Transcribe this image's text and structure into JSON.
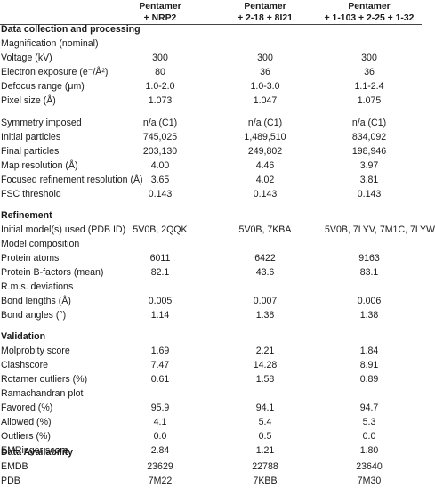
{
  "columns": [
    {
      "line1": "Pentamer",
      "line2": "+ NRP2"
    },
    {
      "line1": "Pentamer",
      "line2": "+ 2-18 + 8I21"
    },
    {
      "line1": "Pentamer",
      "line2": "+ 1-103 + 2-25 + 1-32"
    }
  ],
  "rows": [
    {
      "type": "section",
      "label": "Data collection and processing",
      "values": [
        "",
        "",
        ""
      ]
    },
    {
      "type": "row",
      "label": "Magnification (nominal)",
      "values": [
        "",
        "",
        ""
      ]
    },
    {
      "type": "row",
      "label": "Voltage (kV)",
      "values": [
        "300",
        "300",
        "300"
      ]
    },
    {
      "type": "row",
      "label": "Electron exposure (e⁻/Å²)",
      "values": [
        "80",
        "36",
        "36"
      ]
    },
    {
      "type": "row",
      "label": "Defocus range (μm)",
      "values": [
        "1.0-2.0",
        "1.0-3.0",
        "1.1-2.4"
      ]
    },
    {
      "type": "row",
      "label": "Pixel size (Å)",
      "values": [
        "1.073",
        "1.047",
        "1.075"
      ]
    },
    {
      "type": "row",
      "label": "Symmetry imposed",
      "values": [
        "n/a (C1)",
        "n/a (C1)",
        "n/a (C1)"
      ]
    },
    {
      "type": "row",
      "label": "Initial particles",
      "values": [
        "745,025",
        "1,489,510",
        "834,092"
      ]
    },
    {
      "type": "row",
      "label": "Final particles",
      "values": [
        "203,130",
        "249,802",
        "198,946"
      ]
    },
    {
      "type": "row",
      "label": "Map resolution (Å)",
      "values": [
        "4.00",
        "4.46",
        "3.97"
      ]
    },
    {
      "type": "row",
      "label": "Focused refinement resolution (Å)",
      "values": [
        "3.65",
        "4.02",
        "3.81"
      ]
    },
    {
      "type": "row",
      "label": "FSC threshold",
      "values": [
        "0.143",
        "0.143",
        "0.143"
      ]
    },
    {
      "type": "section",
      "label": "Refinement",
      "values": [
        "",
        "",
        ""
      ]
    },
    {
      "type": "row",
      "label": "Initial model(s) used (PDB ID)",
      "values": [
        "5V0B, 2QQK",
        "5V0B, 7KBA",
        "5V0B, 7LYV, 7M1C, 7LYW"
      ]
    },
    {
      "type": "row",
      "label": "Model composition",
      "values": [
        "",
        "",
        ""
      ]
    },
    {
      "type": "row",
      "label": "Protein atoms",
      "values": [
        "6011",
        "6422",
        "9163"
      ]
    },
    {
      "type": "row",
      "label": "Protein B-factors (mean)",
      "values": [
        "82.1",
        "43.6",
        "83.1"
      ]
    },
    {
      "type": "row",
      "label": "R.m.s. deviations",
      "values": [
        "",
        "",
        ""
      ]
    },
    {
      "type": "row",
      "label": "Bond lengths (Å)",
      "values": [
        "0.005",
        "0.007",
        "0.006"
      ]
    },
    {
      "type": "row",
      "label": "Bond angles (°)",
      "values": [
        "1.14",
        "1.38",
        "1.38"
      ]
    },
    {
      "type": "section",
      "label": "Validation",
      "values": [
        "",
        "",
        ""
      ]
    },
    {
      "type": "row",
      "label": "Molprobity score",
      "values": [
        "1.69",
        "2.21",
        "1.84"
      ]
    },
    {
      "type": "row",
      "label": "Clashscore",
      "values": [
        "7.47",
        "14.28",
        "8.91"
      ]
    },
    {
      "type": "row",
      "label": "Rotamer outliers (%)",
      "values": [
        "0.61",
        "1.58",
        "0.89"
      ]
    },
    {
      "type": "row",
      "label": "Ramachandran plot",
      "values": [
        "",
        "",
        ""
      ]
    },
    {
      "type": "row",
      "label": "Favored (%)",
      "values": [
        "95.9",
        "94.1",
        "94.7"
      ]
    },
    {
      "type": "row",
      "label": "Allowed (%)",
      "values": [
        "4.1",
        "5.4",
        "5.3"
      ]
    },
    {
      "type": "row",
      "label": "Outliers (%)",
      "values": [
        "0.0",
        "0.5",
        "0.0"
      ]
    },
    {
      "type": "row",
      "label": "EMRinger score",
      "values": [
        "2.84",
        "1.21",
        "1.80"
      ]
    },
    {
      "type": "section",
      "label": "Data Availability",
      "values": [
        "",
        "",
        ""
      ]
    },
    {
      "type": "row",
      "label": "EMDB",
      "values": [
        "23629",
        "22788",
        "23640"
      ]
    },
    {
      "type": "row",
      "label": "PDB",
      "values": [
        "7M22",
        "7KBB",
        "7M30"
      ]
    }
  ]
}
